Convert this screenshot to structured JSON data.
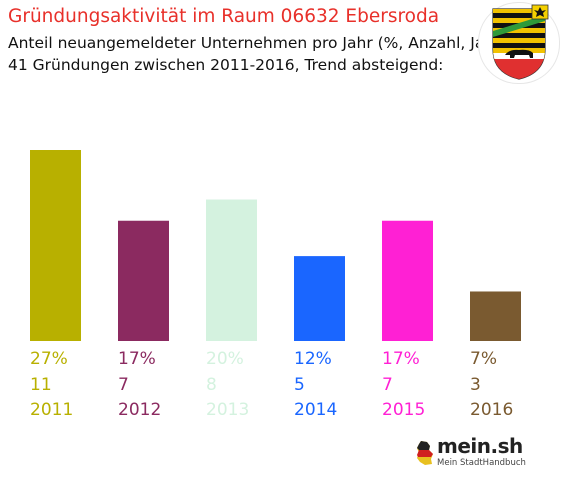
{
  "header": {
    "title": "Gründungsaktivität im Raum 06632 Ebersroda",
    "subtitle_line1": "Anteil neuangemeldeter Unternehmen pro Jahr (%, Anzahl, Jahr)",
    "subtitle_line2": "41 Gründungen zwischen 2011-2016, Trend absteigend:"
  },
  "crest": {
    "icon": "coat-of-arms-saxony-anhalt-icon"
  },
  "logo": {
    "name": "mein.sh",
    "tagline": "Mein StadtHandbuch",
    "icon": "germany-map-icon"
  },
  "chart_data": {
    "type": "bar",
    "categories": [
      "2011",
      "2012",
      "2013",
      "2014",
      "2015",
      "2016"
    ],
    "values": [
      27,
      17,
      20,
      12,
      17,
      7
    ],
    "percent_labels": [
      "27%",
      "17%",
      "20%",
      "12%",
      "17%",
      "7%"
    ],
    "counts": [
      11,
      7,
      8,
      5,
      7,
      3
    ],
    "colors": [
      "#b8b000",
      "#8b2a60",
      "#d4f2df",
      "#1a66ff",
      "#ff20d4",
      "#7a5a30"
    ],
    "ylim": [
      0,
      27
    ]
  }
}
